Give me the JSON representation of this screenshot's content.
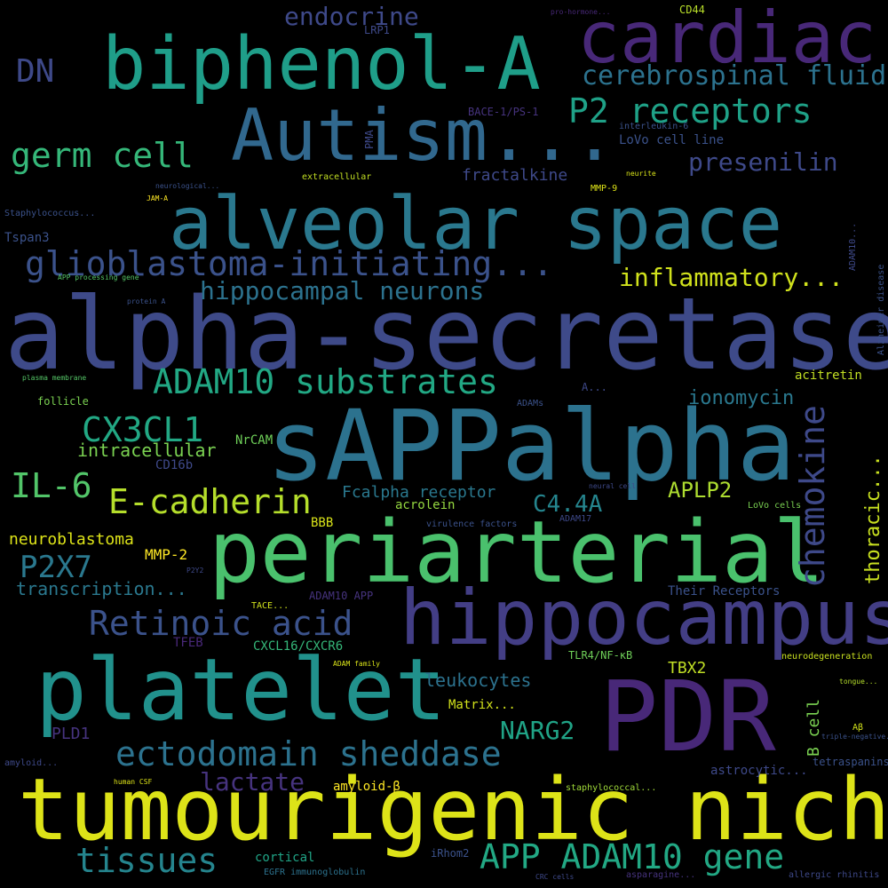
{
  "words": [
    "alpha-secretase",
    "sAPPalpha",
    "periarterial",
    "tumourigenic niche",
    "PDR",
    "platelet",
    "hippocampus",
    "alveolar space",
    "Autism...",
    "biphenol-A",
    "cardiac",
    "endocrine",
    "DN",
    "cerebrospinal fluid",
    "P2 receptors",
    "germ cell",
    "presenilin",
    "glioblastoma-initiating...",
    "hippocampal neurons",
    "inflammatory...",
    "ADAM10 substrates",
    "ionomycin",
    "acitretin",
    "CX3CL1",
    "intracellular",
    "chemokine",
    "IL-6",
    "E-cadherin",
    "Fcalpha receptor",
    "C4.4A",
    "APLP2",
    "thoracic...",
    "acrolein",
    "NrCAM",
    "CD16b",
    "neuroblastoma",
    "P2X7",
    "MMP-2",
    "transcription...",
    "BBB",
    "Retinoic acid",
    "leukocytes",
    "NARG2",
    "ectodomain sheddase",
    "lactate",
    "TBX2",
    "Matrix...",
    "amyloid-β",
    "tissues",
    "APP ADAM10 gene",
    "cortical",
    "B cell",
    "PLD1",
    "astrocytic...",
    "tetraspanins",
    "LoVo cell line",
    "fractalkine",
    "CD44",
    "LRP1",
    "PMA",
    "BACE-1/PS-1",
    "interleukin-6",
    "Tspan3",
    "Staphylococcus...",
    "extracellular",
    "MMP-9",
    "follicle",
    "CXCL16/CXCR6",
    "TLR4/NF-κB",
    "LoVo cells",
    "ADAM17",
    "Their Receptors",
    "ADAM10 APP",
    "TFEB",
    "neurodegeneration",
    "iRhom2",
    "EGFR immunoglobulin",
    "asparagine...",
    "allergic rhinitis",
    "amyloid...",
    "human CSF",
    "staphylococcal...",
    "Alzheimer disease",
    "ADAM10...",
    "virulence factors",
    "neural cell",
    "A...",
    "ADAMs",
    "plasma membrane",
    "protein A",
    "APP processing gene",
    "P2Y2",
    "TACE...",
    "ADAM family",
    "Aβ",
    "neurite",
    "neurological...",
    "JAM-A",
    "pro-hormone...",
    "tongue...",
    "triple-negative...",
    "CRC cells"
  ]
}
